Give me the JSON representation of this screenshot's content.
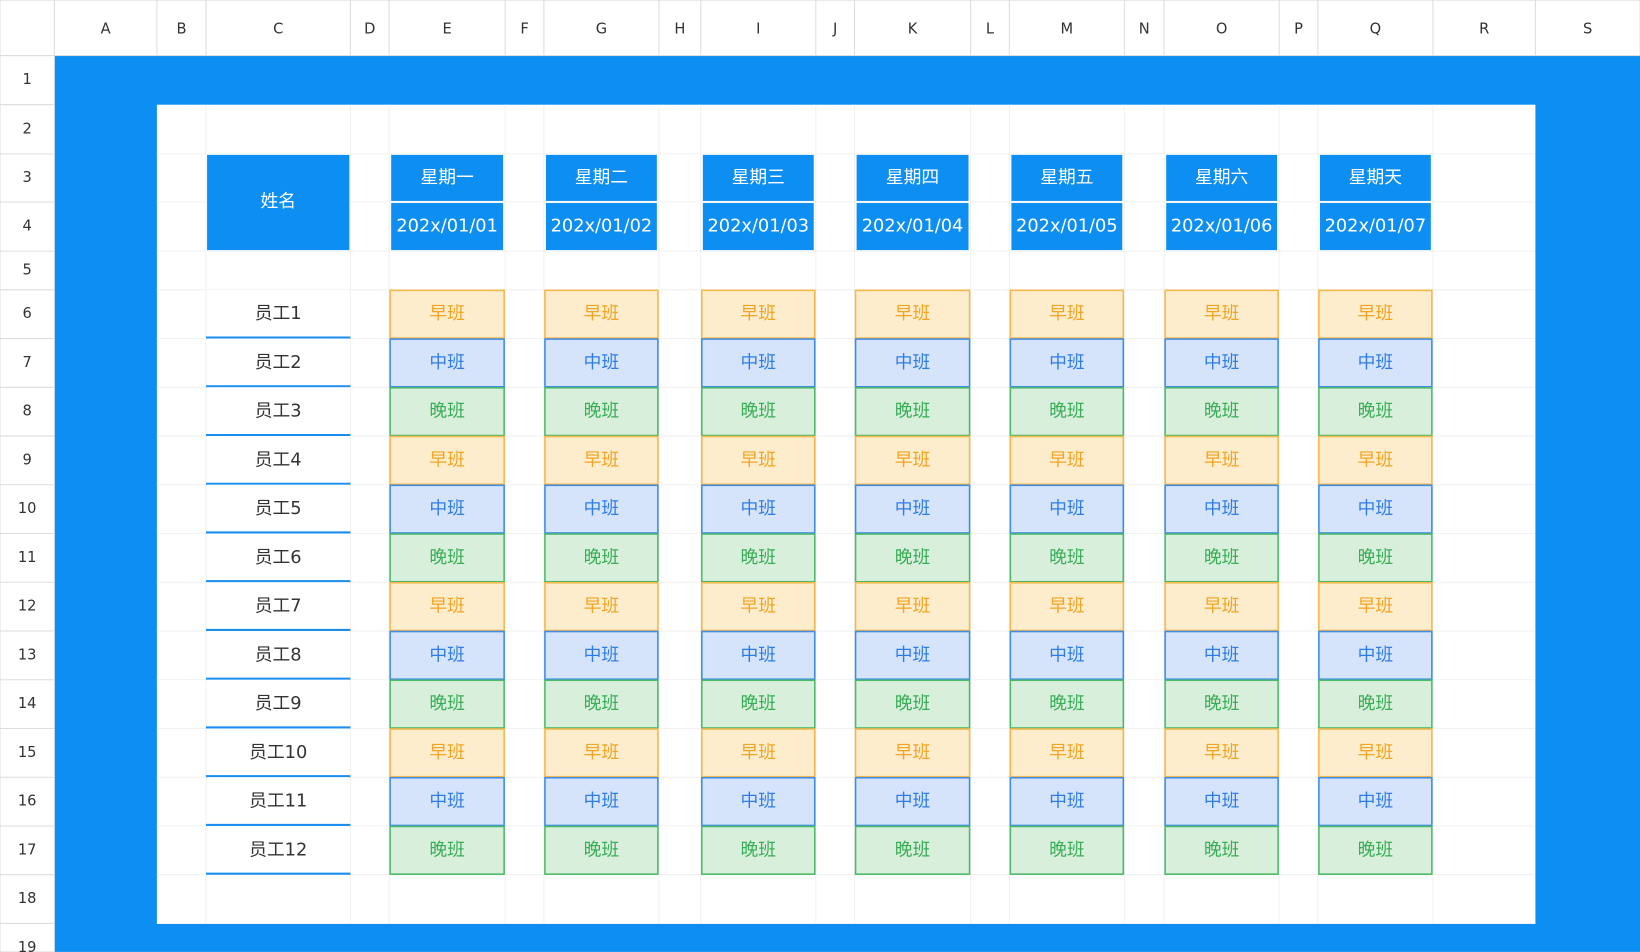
{
  "columns": [
    "A",
    "B",
    "C",
    "D",
    "E",
    "F",
    "G",
    "H",
    "I",
    "J",
    "K",
    "L",
    "M",
    "N",
    "O",
    "P",
    "Q",
    "R",
    "S"
  ],
  "rows": [
    "1",
    "2",
    "3",
    "4",
    "5",
    "6",
    "7",
    "8",
    "9",
    "10",
    "11",
    "12",
    "13",
    "14",
    "15",
    "16",
    "17",
    "18",
    "19"
  ],
  "table": {
    "name_header": "姓名",
    "days": [
      "星期一",
      "星期二",
      "星期三",
      "星期四",
      "星期五",
      "星期六",
      "星期天"
    ],
    "dates": [
      "202x/01/01",
      "202x/01/02",
      "202x/01/03",
      "202x/01/04",
      "202x/01/05",
      "202x/01/06",
      "202x/01/07"
    ],
    "employees": [
      "员工1",
      "员工2",
      "员工3",
      "员工4",
      "员工5",
      "员工6",
      "员工7",
      "员工8",
      "员工9",
      "员工10",
      "员工11",
      "员工12"
    ],
    "shifts": [
      [
        "早班",
        "早班",
        "早班",
        "早班",
        "早班",
        "早班",
        "早班"
      ],
      [
        "中班",
        "中班",
        "中班",
        "中班",
        "中班",
        "中班",
        "中班"
      ],
      [
        "晚班",
        "晚班",
        "晚班",
        "晚班",
        "晚班",
        "晚班",
        "晚班"
      ],
      [
        "早班",
        "早班",
        "早班",
        "早班",
        "早班",
        "早班",
        "早班"
      ],
      [
        "中班",
        "中班",
        "中班",
        "中班",
        "中班",
        "中班",
        "中班"
      ],
      [
        "晚班",
        "晚班",
        "晚班",
        "晚班",
        "晚班",
        "晚班",
        "晚班"
      ],
      [
        "早班",
        "早班",
        "早班",
        "早班",
        "早班",
        "早班",
        "早班"
      ],
      [
        "中班",
        "中班",
        "中班",
        "中班",
        "中班",
        "中班",
        "中班"
      ],
      [
        "晚班",
        "晚班",
        "晚班",
        "晚班",
        "晚班",
        "晚班",
        "晚班"
      ],
      [
        "早班",
        "早班",
        "早班",
        "早班",
        "早班",
        "早班",
        "早班"
      ],
      [
        "中班",
        "中班",
        "中班",
        "中班",
        "中班",
        "中班",
        "中班"
      ],
      [
        "晚班",
        "晚班",
        "晚班",
        "晚班",
        "晚班",
        "晚班",
        "晚班"
      ]
    ]
  }
}
